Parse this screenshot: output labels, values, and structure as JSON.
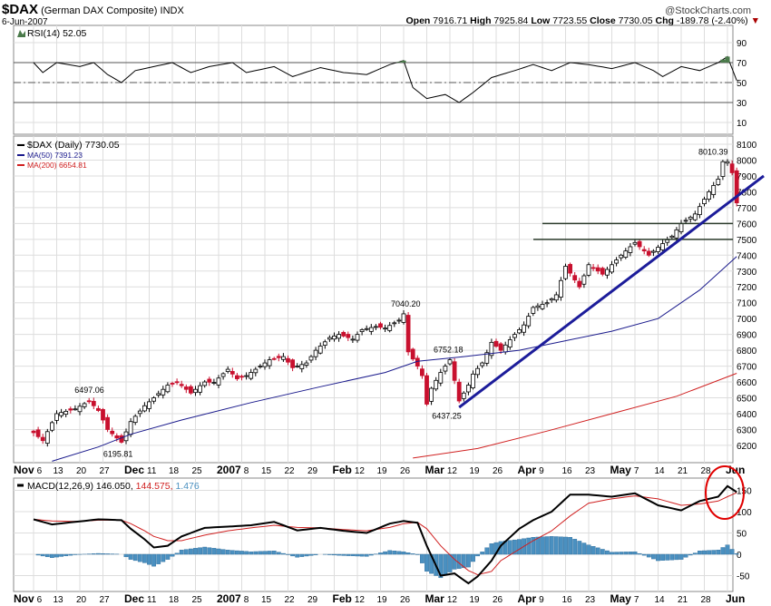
{
  "header": {
    "symbol": "$DAX",
    "name": "(German DAX Composite)",
    "exchange": "INDX",
    "date": "6-Jun-2007",
    "brand": "@StockCharts.com",
    "open_label": "Open",
    "open": "7916.71",
    "high_label": "High",
    "high": "7925.84",
    "low_label": "Low",
    "low": "7723.55",
    "close_label": "Close",
    "close": "7730.05",
    "chg_label": "Chg",
    "chg": "-189.78 (-2.40%)"
  },
  "colors": {
    "up": "#000000",
    "down": "#c8102e",
    "ma50": "#1a1a8c",
    "ma200": "#d02020",
    "macd": "#000000",
    "signal": "#d02020",
    "hist": "#4a90c0",
    "trend": "#1c1c9a",
    "circle": "#e00000"
  },
  "chart_data": [
    {
      "type": "line",
      "title": "RSI(14) 52.05",
      "yticks": [
        90,
        70,
        50,
        30,
        10
      ],
      "ylim": [
        0,
        100
      ],
      "points": [
        [
          "2006-11-06",
          70
        ],
        [
          "2006-11-08",
          60
        ],
        [
          "2006-11-13",
          70
        ],
        [
          "2006-11-20",
          66
        ],
        [
          "2006-11-23",
          70
        ],
        [
          "2006-11-28",
          58
        ],
        [
          "2006-12-01",
          50
        ],
        [
          "2006-12-06",
          62
        ],
        [
          "2006-12-12",
          66
        ],
        [
          "2006-12-18",
          70
        ],
        [
          "2006-12-22",
          60
        ],
        [
          "2006-12-28",
          66
        ],
        [
          "2007-01-04",
          70
        ],
        [
          "2007-01-09",
          60
        ],
        [
          "2007-01-17",
          66
        ],
        [
          "2007-01-23",
          56
        ],
        [
          "2007-01-31",
          65
        ],
        [
          "2007-02-07",
          60
        ],
        [
          "2007-02-14",
          58
        ],
        [
          "2007-02-21",
          68
        ],
        [
          "2007-02-26",
          72
        ],
        [
          "2007-02-28",
          45
        ],
        [
          "2007-03-05",
          34
        ],
        [
          "2007-03-09",
          38
        ],
        [
          "2007-03-14",
          30
        ],
        [
          "2007-03-19",
          40
        ],
        [
          "2007-03-23",
          55
        ],
        [
          "2007-03-30",
          62
        ],
        [
          "2007-04-05",
          68
        ],
        [
          "2007-04-11",
          62
        ],
        [
          "2007-04-17",
          70
        ],
        [
          "2007-04-23",
          68
        ],
        [
          "2007-04-30",
          64
        ],
        [
          "2007-05-07",
          70
        ],
        [
          "2007-05-11",
          62
        ],
        [
          "2007-05-15",
          56
        ],
        [
          "2007-05-21",
          66
        ],
        [
          "2007-05-25",
          62
        ],
        [
          "2007-05-31",
          70
        ],
        [
          "2007-06-04",
          76
        ],
        [
          "2007-06-06",
          52.05
        ]
      ]
    },
    {
      "type": "candlestick",
      "title": "$DAX (Daily) 7730.05",
      "legend": [
        {
          "name": "$DAX (Daily) 7730.05"
        },
        {
          "name": "MA(50) 7391.23"
        },
        {
          "name": "MA(200) 6654.81"
        }
      ],
      "ylim": [
        6100,
        8150
      ],
      "yticks": [
        8100,
        8000,
        7900,
        7800,
        7700,
        7600,
        7500,
        7400,
        7300,
        7200,
        7100,
        7000,
        6900,
        6800,
        6700,
        6600,
        6500,
        6400,
        6300,
        6200
      ],
      "closes": [
        [
          "2006-11-06",
          6280
        ],
        [
          "2006-11-08",
          6230
        ],
        [
          "2006-11-13",
          6400
        ],
        [
          "2006-11-17",
          6430
        ],
        [
          "2006-11-22",
          6480
        ],
        [
          "2006-11-24",
          6420
        ],
        [
          "2006-11-28",
          6300
        ],
        [
          "2006-12-01",
          6220
        ],
        [
          "2006-12-05",
          6350
        ],
        [
          "2006-12-08",
          6450
        ],
        [
          "2006-12-12",
          6500
        ],
        [
          "2006-12-15",
          6580
        ],
        [
          "2006-12-19",
          6600
        ],
        [
          "2006-12-22",
          6530
        ],
        [
          "2006-12-27",
          6600
        ],
        [
          "2006-12-29",
          6597
        ],
        [
          "2007-01-03",
          6680
        ],
        [
          "2007-01-05",
          6620
        ],
        [
          "2007-01-09",
          6640
        ],
        [
          "2007-01-12",
          6700
        ],
        [
          "2007-01-16",
          6740
        ],
        [
          "2007-01-19",
          6760
        ],
        [
          "2007-01-23",
          6690
        ],
        [
          "2007-01-26",
          6720
        ],
        [
          "2007-01-30",
          6800
        ],
        [
          "2007-02-02",
          6880
        ],
        [
          "2007-02-06",
          6900
        ],
        [
          "2007-02-09",
          6870
        ],
        [
          "2007-02-13",
          6930
        ],
        [
          "2007-02-16",
          6950
        ],
        [
          "2007-02-20",
          6940
        ],
        [
          "2007-02-23",
          6990
        ],
        [
          "2007-02-26",
          7030
        ],
        [
          "2007-02-27",
          6790
        ],
        [
          "2007-03-01",
          6700
        ],
        [
          "2007-03-02",
          6640
        ],
        [
          "2007-03-05",
          6460
        ],
        [
          "2007-03-06",
          6560
        ],
        [
          "2007-03-08",
          6660
        ],
        [
          "2007-03-12",
          6740
        ],
        [
          "2007-03-14",
          6480
        ],
        [
          "2007-03-16",
          6580
        ],
        [
          "2007-03-19",
          6650
        ],
        [
          "2007-03-21",
          6720
        ],
        [
          "2007-03-23",
          6850
        ],
        [
          "2007-03-27",
          6800
        ],
        [
          "2007-03-30",
          6900
        ],
        [
          "2007-04-03",
          6960
        ],
        [
          "2007-04-05",
          7070
        ],
        [
          "2007-04-10",
          7100
        ],
        [
          "2007-04-12",
          7150
        ],
        [
          "2007-04-16",
          7330
        ],
        [
          "2007-04-19",
          7200
        ],
        [
          "2007-04-23",
          7340
        ],
        [
          "2007-04-26",
          7280
        ],
        [
          "2007-05-02",
          7400
        ],
        [
          "2007-05-07",
          7480
        ],
        [
          "2007-05-10",
          7400
        ],
        [
          "2007-05-14",
          7450
        ],
        [
          "2007-05-17",
          7520
        ],
        [
          "2007-05-21",
          7600
        ],
        [
          "2007-05-24",
          7660
        ],
        [
          "2007-05-29",
          7800
        ],
        [
          "2007-05-31",
          7880
        ],
        [
          "2007-06-01",
          7990
        ],
        [
          "2007-06-04",
          7990
        ],
        [
          "2007-06-05",
          7920
        ],
        [
          "2007-06-06",
          7730.05
        ]
      ],
      "ma50": [
        [
          "2006-11-10",
          6100
        ],
        [
          "2006-11-24",
          6190
        ],
        [
          "2006-12-05",
          6270
        ],
        [
          "2006-12-20",
          6360
        ],
        [
          "2007-01-10",
          6470
        ],
        [
          "2007-01-31",
          6570
        ],
        [
          "2007-02-20",
          6660
        ],
        [
          "2007-03-01",
          6730
        ],
        [
          "2007-03-15",
          6760
        ],
        [
          "2007-04-02",
          6800
        ],
        [
          "2007-04-16",
          6860
        ],
        [
          "2007-04-30",
          6920
        ],
        [
          "2007-05-14",
          7000
        ],
        [
          "2007-05-25",
          7180
        ],
        [
          "2007-06-06",
          7391.23
        ]
      ],
      "ma200": [
        [
          "2007-02-28",
          6120
        ],
        [
          "2007-03-20",
          6180
        ],
        [
          "2007-04-10",
          6290
        ],
        [
          "2007-04-30",
          6400
        ],
        [
          "2007-05-18",
          6510
        ],
        [
          "2007-06-06",
          6654.81
        ]
      ],
      "annotations": [
        {
          "date": "2006-11-22",
          "value": "6497.06"
        },
        {
          "date": "2006-12-01",
          "value": "6195.81"
        },
        {
          "date": "2007-02-26",
          "value": "7040.20"
        },
        {
          "date": "2007-03-12",
          "value": "6752.18"
        },
        {
          "date": "2007-03-14",
          "value": "6437.25"
        },
        {
          "date": "2007-06-04",
          "value": "8010.39"
        }
      ],
      "support_lines": [
        7600,
        7500
      ],
      "trendline": [
        [
          "2007-03-14",
          6440
        ],
        [
          "2007-06-08",
          7900
        ]
      ]
    },
    {
      "type": "line+bar",
      "title": "MACD(12,26,9)",
      "legend": [
        {
          "name": "MACD(12,26,9) 146.050,"
        },
        {
          "name": "144.575,"
        },
        {
          "name": "1.476"
        }
      ],
      "ylim": [
        -75,
        175
      ],
      "yticks": [
        150,
        100,
        50,
        0,
        -50
      ],
      "points": [
        [
          "2006-11-06",
          82,
          82,
          0
        ],
        [
          "2006-11-10",
          70,
          78,
          -8
        ],
        [
          "2006-11-17",
          76,
          77,
          -1
        ],
        [
          "2006-11-24",
          82,
          80,
          2
        ],
        [
          "2006-12-01",
          80,
          80,
          0
        ],
        [
          "2006-12-05",
          60,
          72,
          -12
        ],
        [
          "2006-12-08",
          35,
          55,
          -20
        ],
        [
          "2006-12-12",
          16,
          42,
          -28
        ],
        [
          "2006-12-15",
          20,
          32,
          -12
        ],
        [
          "2006-12-20",
          42,
          32,
          10
        ],
        [
          "2006-12-27",
          62,
          45,
          17
        ],
        [
          "2007-01-03",
          65,
          55,
          10
        ],
        [
          "2007-01-10",
          68,
          62,
          6
        ],
        [
          "2007-01-17",
          76,
          68,
          8
        ],
        [
          "2007-01-24",
          56,
          63,
          -7
        ],
        [
          "2007-01-31",
          62,
          62,
          0
        ],
        [
          "2007-02-07",
          55,
          58,
          -3
        ],
        [
          "2007-02-14",
          50,
          55,
          -5
        ],
        [
          "2007-02-21",
          72,
          63,
          9
        ],
        [
          "2007-02-26",
          78,
          72,
          6
        ],
        [
          "2007-03-01",
          74,
          75,
          -1
        ],
        [
          "2007-03-05",
          20,
          60,
          -40
        ],
        [
          "2007-03-08",
          -50,
          20,
          -55
        ],
        [
          "2007-03-13",
          -45,
          -12,
          -35
        ],
        [
          "2007-03-16",
          -68,
          -38,
          -30
        ],
        [
          "2007-03-20",
          -52,
          -48,
          -4
        ],
        [
          "2007-03-23",
          -15,
          -40,
          25
        ],
        [
          "2007-03-27",
          20,
          -15,
          30
        ],
        [
          "2007-04-02",
          60,
          12,
          35
        ],
        [
          "2007-04-05",
          80,
          32,
          40
        ],
        [
          "2007-04-11",
          100,
          55,
          42
        ],
        [
          "2007-04-17",
          140,
          90,
          40
        ],
        [
          "2007-04-23",
          140,
          120,
          22
        ],
        [
          "2007-04-30",
          135,
          130,
          5
        ],
        [
          "2007-05-07",
          143,
          137,
          6
        ],
        [
          "2007-05-14",
          115,
          130,
          -15
        ],
        [
          "2007-05-21",
          103,
          115,
          -12
        ],
        [
          "2007-05-25",
          125,
          118,
          8
        ],
        [
          "2007-05-31",
          135,
          125,
          10
        ],
        [
          "2007-06-04",
          160,
          135,
          22
        ],
        [
          "2007-06-06",
          146.05,
          144.575,
          1.476
        ]
      ]
    }
  ],
  "axis": {
    "dates": [
      [
        "2006-11-06",
        "Nov"
      ],
      [
        "2006-11-06",
        "6"
      ],
      [
        "2006-11-13",
        "13"
      ],
      [
        "2006-11-20",
        "20"
      ],
      [
        "2006-11-27",
        "27"
      ],
      [
        "2006-12-04",
        "Dec"
      ],
      [
        "2006-12-11",
        "11"
      ],
      [
        "2006-12-18",
        "18"
      ],
      [
        "2006-12-25",
        "25"
      ],
      [
        "2007-01-01",
        "2007"
      ],
      [
        "2007-01-08",
        "8"
      ],
      [
        "2007-01-15",
        "15"
      ],
      [
        "2007-01-22",
        "22"
      ],
      [
        "2007-01-29",
        "29"
      ],
      [
        "2007-02-05",
        "Feb"
      ],
      [
        "2007-02-12",
        "12"
      ],
      [
        "2007-02-19",
        "19"
      ],
      [
        "2007-02-26",
        "26"
      ],
      [
        "2007-03-05",
        "Mar"
      ],
      [
        "2007-03-12",
        "12"
      ],
      [
        "2007-03-19",
        "19"
      ],
      [
        "2007-03-26",
        "26"
      ],
      [
        "2007-04-02",
        "Apr"
      ],
      [
        "2007-04-09",
        "9"
      ],
      [
        "2007-04-16",
        "16"
      ],
      [
        "2007-04-23",
        "23"
      ],
      [
        "2007-04-30",
        "May"
      ],
      [
        "2007-05-07",
        "7"
      ],
      [
        "2007-05-14",
        "14"
      ],
      [
        "2007-05-21",
        "21"
      ],
      [
        "2007-05-28",
        "28"
      ],
      [
        "2007-06-04",
        "Jun"
      ]
    ]
  }
}
